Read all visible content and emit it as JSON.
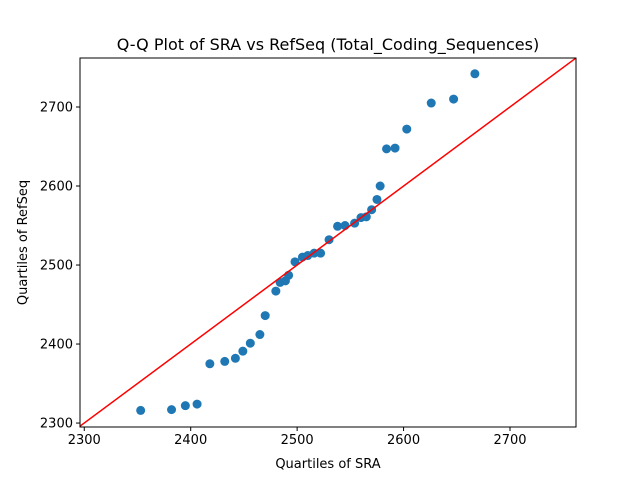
{
  "chart_data": {
    "type": "scatter",
    "title": "Q-Q Plot of SRA vs RefSeq (Total_Coding_Sequences)",
    "xlabel": "Quartiles of SRA",
    "ylabel": "Quartiles of RefSeq",
    "xlim": [
      2296,
      2762
    ],
    "ylim": [
      2295,
      2762
    ],
    "xticks": [
      2300,
      2400,
      2500,
      2600,
      2700
    ],
    "yticks": [
      2300,
      2400,
      2500,
      2600,
      2700
    ],
    "grid": false,
    "legend": "none",
    "colors": {
      "points": "#1f77b4",
      "reference_line": "#ff0000",
      "axes": "#000000"
    },
    "reference_line": {
      "x": [
        2296,
        2762
      ],
      "y": [
        2296,
        2762
      ]
    },
    "series": [
      {
        "x": [
          2353,
          2382,
          2395,
          2406,
          2418,
          2432,
          2442,
          2449,
          2456,
          2465,
          2470,
          2480,
          2484,
          2489,
          2492,
          2498,
          2505,
          2510,
          2516,
          2522,
          2530,
          2538,
          2545,
          2554,
          2560,
          2565,
          2570,
          2575,
          2578,
          2584,
          2592,
          2603,
          2626,
          2647,
          2667
        ],
        "y": [
          2316,
          2317,
          2322,
          2324,
          2375,
          2378,
          2382,
          2391,
          2401,
          2412,
          2436,
          2467,
          2478,
          2480,
          2487,
          2504,
          2510,
          2512,
          2515,
          2515,
          2532,
          2549,
          2550,
          2553,
          2560,
          2561,
          2570,
          2583,
          2600,
          2647,
          2648,
          2672,
          2705,
          2710,
          2742
        ]
      }
    ]
  }
}
